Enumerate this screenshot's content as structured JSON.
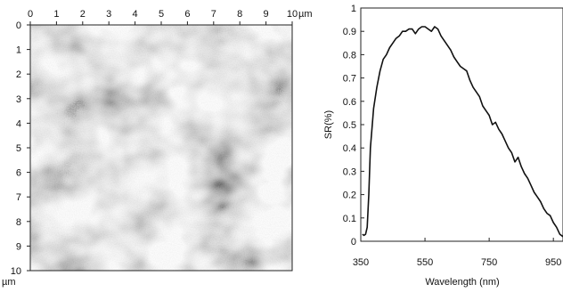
{
  "afm": {
    "x_ticks": [
      "0",
      "1",
      "2",
      "3",
      "4",
      "5",
      "6",
      "7",
      "8",
      "9",
      "10"
    ],
    "y_ticks": [
      "0",
      "1",
      "2",
      "3",
      "4",
      "5",
      "6",
      "7",
      "8",
      "9",
      "10"
    ],
    "x_unit": "µm",
    "y_unit": "µm"
  },
  "chart_data": {
    "type": "line",
    "title": "",
    "xlabel": "Wavelength (nm)",
    "ylabel": "SR(%)",
    "xlim": [
      350,
      980
    ],
    "ylim": [
      0,
      1
    ],
    "x_ticks": [
      350,
      550,
      750,
      950
    ],
    "y_ticks": [
      0,
      0.1,
      0.2,
      0.3,
      0.4,
      0.5,
      0.6,
      0.7,
      0.8,
      0.9,
      1
    ],
    "grid": false,
    "series": [
      {
        "x": [
          355,
          360,
          365,
          370,
          375,
          380,
          390,
          400,
          410,
          420,
          430,
          440,
          450,
          460,
          470,
          480,
          490,
          500,
          510,
          520,
          530,
          540,
          550,
          560,
          570,
          580,
          590,
          600,
          610,
          620,
          630,
          640,
          650,
          660,
          670,
          680,
          690,
          700,
          710,
          720,
          730,
          740,
          750,
          760,
          770,
          780,
          790,
          800,
          810,
          820,
          830,
          840,
          850,
          860,
          870,
          880,
          890,
          900,
          910,
          920,
          930,
          940,
          950,
          960,
          970,
          980
        ],
        "y": [
          0.03,
          0.025,
          0.03,
          0.06,
          0.2,
          0.4,
          0.57,
          0.66,
          0.73,
          0.78,
          0.8,
          0.83,
          0.85,
          0.87,
          0.88,
          0.9,
          0.9,
          0.91,
          0.91,
          0.89,
          0.91,
          0.92,
          0.92,
          0.91,
          0.9,
          0.92,
          0.91,
          0.88,
          0.86,
          0.84,
          0.82,
          0.79,
          0.77,
          0.75,
          0.74,
          0.73,
          0.69,
          0.66,
          0.64,
          0.62,
          0.58,
          0.56,
          0.54,
          0.5,
          0.51,
          0.48,
          0.46,
          0.43,
          0.4,
          0.38,
          0.34,
          0.36,
          0.32,
          0.29,
          0.27,
          0.24,
          0.21,
          0.19,
          0.17,
          0.14,
          0.12,
          0.11,
          0.08,
          0.06,
          0.03,
          0.02
        ]
      }
    ]
  }
}
